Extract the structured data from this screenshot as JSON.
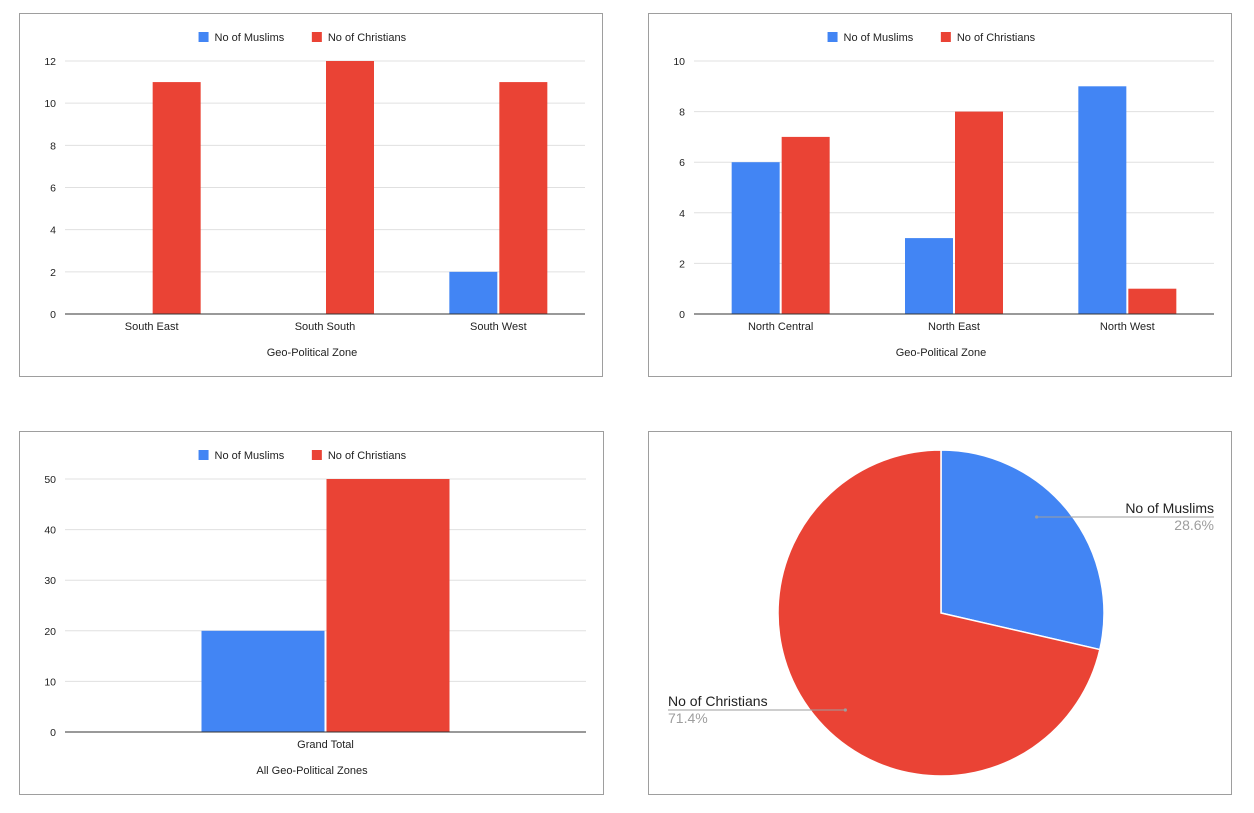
{
  "colors": {
    "muslims": "#4285f4",
    "christians": "#ea4335",
    "grid": "#e0e0e0",
    "axis": "#333333"
  },
  "chart_data": [
    {
      "type": "bar",
      "legend": [
        "No of Muslims",
        "No of Christians"
      ],
      "legend_position": "top",
      "categories": [
        "South East",
        "South South",
        "South West"
      ],
      "series": [
        {
          "name": "No of Muslims",
          "values": [
            0,
            0,
            2
          ]
        },
        {
          "name": "No of Christians",
          "values": [
            11,
            12,
            11
          ]
        }
      ],
      "xlabel": "Geo-Political Zone",
      "ylabel": "",
      "ylim": [
        0,
        12
      ],
      "yticks": [
        0,
        2,
        4,
        6,
        8,
        10,
        12
      ],
      "grid": true
    },
    {
      "type": "bar",
      "legend": [
        "No of Muslims",
        "No of Christians"
      ],
      "legend_position": "top",
      "categories": [
        "North Central",
        "North East",
        "North West"
      ],
      "series": [
        {
          "name": "No of Muslims",
          "values": [
            6,
            3,
            9
          ]
        },
        {
          "name": "No of Christians",
          "values": [
            7,
            8,
            1
          ]
        }
      ],
      "xlabel": "Geo-Political Zone",
      "ylabel": "",
      "ylim": [
        0,
        10
      ],
      "yticks": [
        0,
        2,
        4,
        6,
        8,
        10
      ],
      "grid": true
    },
    {
      "type": "bar",
      "legend": [
        "No of Muslims",
        "No of Christians"
      ],
      "legend_position": "top",
      "categories": [
        "Grand Total"
      ],
      "series": [
        {
          "name": "No of Muslims",
          "values": [
            20
          ]
        },
        {
          "name": "No of Christians",
          "values": [
            50
          ]
        }
      ],
      "xlabel": "All Geo-Political Zones",
      "ylabel": "",
      "ylim": [
        0,
        50
      ],
      "yticks": [
        0,
        10,
        20,
        30,
        40,
        50
      ],
      "grid": true
    },
    {
      "type": "pie",
      "slices": [
        {
          "label": "No of Muslims",
          "value": 28.6,
          "percent_label": "28.6%"
        },
        {
          "label": "No of Christians",
          "value": 71.4,
          "percent_label": "71.4%"
        }
      ]
    }
  ]
}
